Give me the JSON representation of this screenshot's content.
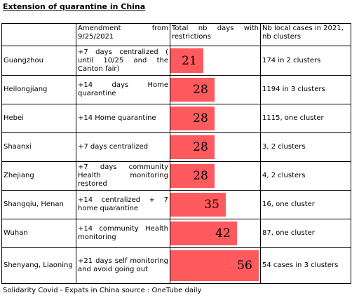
{
  "title": "Extension of quarantine in China",
  "headers": {
    "province": "",
    "amendment_line1": "Amendment from",
    "amendment_line2": "9/25/2021",
    "days_line1": "Total nb days with",
    "days_line2": "restrictions",
    "cases_line1": "Nb local cases in 2021,",
    "cases_line2": "nb clusters"
  },
  "rows": [
    {
      "province": "Guangzhou",
      "amendment": "+7 days centralized ( until 10/25 and the Canton fair)",
      "days": 21,
      "days_label": "21",
      "cases": "174 in 2 clusters"
    },
    {
      "province": "Heilongjiang",
      "amendment": "+14 days Home quarantine",
      "days": 28,
      "days_label": "28",
      "cases": "1194 in 3 clusters"
    },
    {
      "province": "Hebei",
      "amendment": "+14 Home quarantine",
      "days": 28,
      "days_label": "28",
      "cases": "1115, one cluster"
    },
    {
      "province": "Shaanxi",
      "amendment": "+7 days centralized",
      "days": 28,
      "days_label": "28",
      "cases": "3, 2 clusters"
    },
    {
      "province": "Zhejiang",
      "amendment": "+7 days community Health monitoring restored",
      "days": 28,
      "days_label": "28",
      "cases": "4, 2 clusters"
    },
    {
      "province": "Shangqiu, Henan",
      "amendment": "+14 centralized + 7 home quarantine",
      "days": 35,
      "days_label": "35",
      "cases": "16, one cluster"
    },
    {
      "province": "Wuhan",
      "amendment": "+14 community Health monitoring",
      "days": 42,
      "days_label": "42",
      "cases": "87, one cluster"
    },
    {
      "province": "Shenyang, Liaoning",
      "amendment": "+21 days self monitoring and avoid going out",
      "days": 56,
      "days_label": "56",
      "cases": "54 cases in 3 clusters"
    }
  ],
  "bar_max_days": 56,
  "bar_color": "#ff5a5e",
  "footer": "Solidarity Covid - Expats in China source : OneTube daily"
}
